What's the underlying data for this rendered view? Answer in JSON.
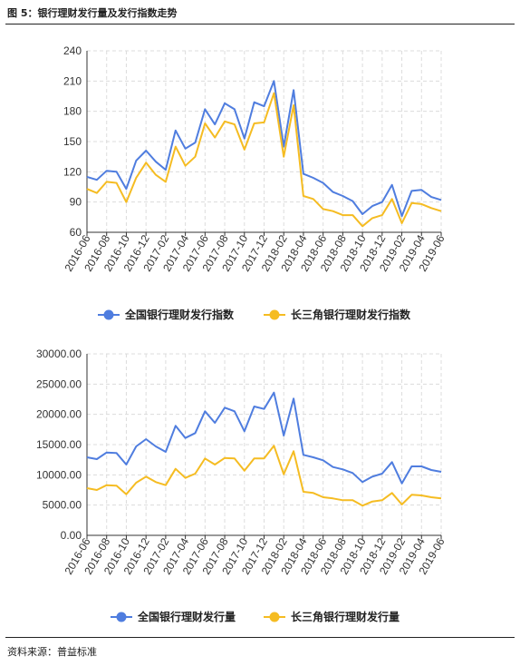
{
  "figure": {
    "title": "图 5：银行理财发行量及发行指数走势",
    "source": "资料来源：普益标准"
  },
  "colors": {
    "national": "#4f7ddf",
    "yrd": "#f5bc22"
  },
  "chart_data": [
    {
      "type": "line",
      "x": [
        "2016-06",
        "2016-07",
        "2016-08",
        "2016-09",
        "2016-10",
        "2016-11",
        "2016-12",
        "2017-01",
        "2017-02",
        "2017-03",
        "2017-04",
        "2017-05",
        "2017-06",
        "2017-07",
        "2017-08",
        "2017-09",
        "2017-10",
        "2017-11",
        "2017-12",
        "2018-01",
        "2018-02",
        "2018-03",
        "2018-04",
        "2018-05",
        "2018-06",
        "2018-07",
        "2018-08",
        "2018-09",
        "2018-10",
        "2018-11",
        "2018-12",
        "2019-01",
        "2019-02",
        "2019-03",
        "2019-04",
        "2019-05",
        "2019-06"
      ],
      "x_tick_labels": [
        "2016-06",
        "2016-08",
        "2016-10",
        "2016-12",
        "2017-02",
        "2017-04",
        "2017-06",
        "2017-08",
        "2017-10",
        "2017-12",
        "2018-02",
        "2018-04",
        "2018-06",
        "2018-08",
        "2018-10",
        "2018-12",
        "2019-02",
        "2019-04",
        "2019-06"
      ],
      "ylim": [
        60,
        240
      ],
      "yticks": [
        "60",
        "90",
        "120",
        "150",
        "180",
        "210",
        "240"
      ],
      "grid": true,
      "legend": "bottom",
      "series": [
        {
          "name": "全国银行理财发行指数",
          "color": "#4f7ddf",
          "values": [
            115,
            112,
            121,
            120,
            103,
            131,
            141,
            130,
            122,
            161,
            143,
            149,
            182,
            167,
            188,
            182,
            153,
            189,
            185,
            210,
            145,
            201,
            118,
            114,
            109,
            100,
            96,
            91,
            78,
            86,
            90,
            107,
            76,
            101,
            102,
            95,
            92
          ]
        },
        {
          "name": "长三角银行理财发行指数",
          "color": "#f5bc22",
          "values": [
            103,
            99,
            110,
            109,
            90,
            114,
            129,
            117,
            110,
            145,
            126,
            135,
            168,
            154,
            170,
            167,
            142,
            168,
            169,
            198,
            135,
            186,
            96,
            93,
            83,
            81,
            77,
            77,
            66,
            74,
            77,
            93,
            69,
            89,
            88,
            84,
            81
          ]
        }
      ]
    },
    {
      "type": "line",
      "x": [
        "2016-06",
        "2016-07",
        "2016-08",
        "2016-09",
        "2016-10",
        "2016-11",
        "2016-12",
        "2017-01",
        "2017-02",
        "2017-03",
        "2017-04",
        "2017-05",
        "2017-06",
        "2017-07",
        "2017-08",
        "2017-09",
        "2017-10",
        "2017-11",
        "2017-12",
        "2018-01",
        "2018-02",
        "2018-03",
        "2018-04",
        "2018-05",
        "2018-06",
        "2018-07",
        "2018-08",
        "2018-09",
        "2018-10",
        "2018-11",
        "2018-12",
        "2019-01",
        "2019-02",
        "2019-03",
        "2019-04",
        "2019-05",
        "2019-06"
      ],
      "x_tick_labels": [
        "2016-06",
        "2016-08",
        "2016-10",
        "2016-12",
        "2017-02",
        "2017-04",
        "2017-06",
        "2017-08",
        "2017-10",
        "2017-12",
        "2018-02",
        "2018-04",
        "2018-06",
        "2018-08",
        "2018-10",
        "2018-12",
        "2019-02",
        "2019-04",
        "2019-06"
      ],
      "ylim": [
        0,
        30000
      ],
      "yticks": [
        "0.00",
        "5000.00",
        "10000.00",
        "15000.00",
        "20000.00",
        "25000.00",
        "30000.00"
      ],
      "grid": true,
      "legend": "bottom",
      "series": [
        {
          "name": "全国银行理财发行量",
          "color": "#4f7ddf",
          "values": [
            12900,
            12600,
            13700,
            13600,
            11700,
            14700,
            15900,
            14700,
            13800,
            18100,
            16100,
            16900,
            20500,
            18600,
            21100,
            20500,
            17200,
            21300,
            20900,
            23600,
            16500,
            22600,
            13300,
            12900,
            12400,
            11300,
            10900,
            10300,
            8800,
            9700,
            10200,
            12100,
            8600,
            11400,
            11400,
            10800,
            10500
          ]
        },
        {
          "name": "长三角银行理财发行量",
          "color": "#f5bc22",
          "values": [
            7800,
            7500,
            8300,
            8200,
            6800,
            8700,
            9700,
            8800,
            8300,
            11000,
            9500,
            10200,
            12700,
            11700,
            12800,
            12700,
            10700,
            12700,
            12700,
            14800,
            10100,
            13900,
            7200,
            7000,
            6300,
            6100,
            5800,
            5800,
            4900,
            5600,
            5800,
            7000,
            5100,
            6700,
            6600,
            6300,
            6100
          ]
        }
      ]
    }
  ]
}
